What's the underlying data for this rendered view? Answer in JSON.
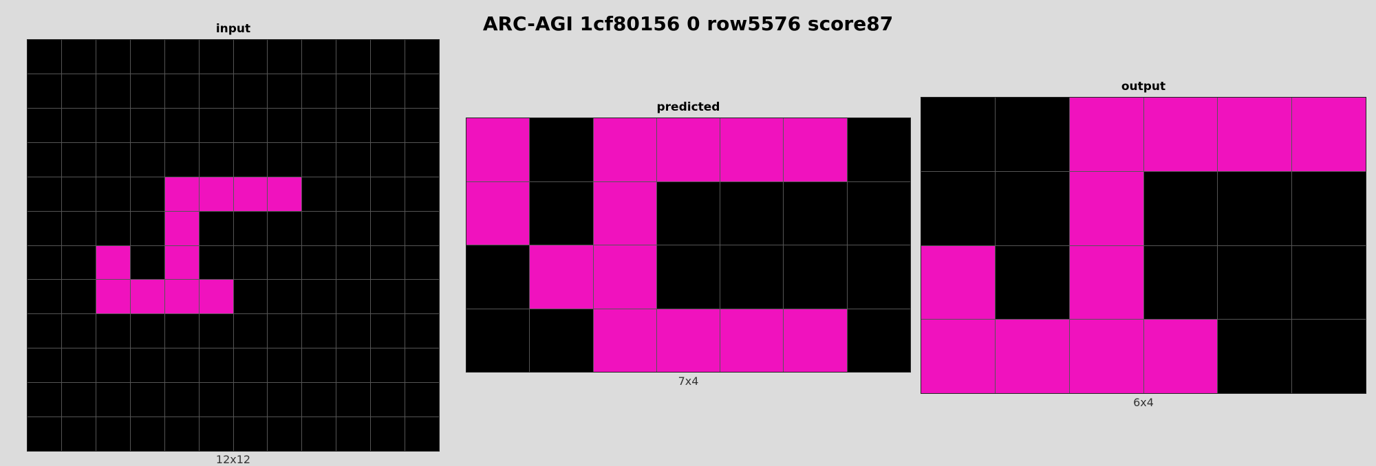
{
  "title": "ARC-AGI 1cf80156 0 row5576 score87",
  "colors": {
    "0": "#000000",
    "6": "#f012be",
    "background": "#dcdcdc",
    "gridline": "#555555"
  },
  "panels": [
    {
      "key": "input",
      "title": "input",
      "dims": "12x12",
      "grid": [
        [
          0,
          0,
          0,
          0,
          0,
          0,
          0,
          0,
          0,
          0,
          0,
          0
        ],
        [
          0,
          0,
          0,
          0,
          0,
          0,
          0,
          0,
          0,
          0,
          0,
          0
        ],
        [
          0,
          0,
          0,
          0,
          0,
          0,
          0,
          0,
          0,
          0,
          0,
          0
        ],
        [
          0,
          0,
          0,
          0,
          0,
          0,
          0,
          0,
          0,
          0,
          0,
          0
        ],
        [
          0,
          0,
          0,
          0,
          6,
          6,
          6,
          6,
          0,
          0,
          0,
          0
        ],
        [
          0,
          0,
          0,
          0,
          6,
          0,
          0,
          0,
          0,
          0,
          0,
          0
        ],
        [
          0,
          0,
          6,
          0,
          6,
          0,
          0,
          0,
          0,
          0,
          0,
          0
        ],
        [
          0,
          0,
          6,
          6,
          6,
          6,
          0,
          0,
          0,
          0,
          0,
          0
        ],
        [
          0,
          0,
          0,
          0,
          0,
          0,
          0,
          0,
          0,
          0,
          0,
          0
        ],
        [
          0,
          0,
          0,
          0,
          0,
          0,
          0,
          0,
          0,
          0,
          0,
          0
        ],
        [
          0,
          0,
          0,
          0,
          0,
          0,
          0,
          0,
          0,
          0,
          0,
          0
        ],
        [
          0,
          0,
          0,
          0,
          0,
          0,
          0,
          0,
          0,
          0,
          0,
          0
        ]
      ]
    },
    {
      "key": "predicted",
      "title": "predicted",
      "dims": "7x4",
      "grid": [
        [
          6,
          0,
          6,
          6,
          6,
          6,
          0
        ],
        [
          6,
          0,
          6,
          0,
          0,
          0,
          0
        ],
        [
          0,
          6,
          6,
          0,
          0,
          0,
          0
        ],
        [
          0,
          0,
          6,
          6,
          6,
          6,
          0
        ]
      ]
    },
    {
      "key": "output",
      "title": "output",
      "dims": "6x4",
      "grid": [
        [
          0,
          0,
          6,
          6,
          6,
          6
        ],
        [
          0,
          0,
          6,
          0,
          0,
          0
        ],
        [
          6,
          0,
          6,
          0,
          0,
          0
        ],
        [
          6,
          6,
          6,
          6,
          0,
          0
        ]
      ]
    }
  ]
}
